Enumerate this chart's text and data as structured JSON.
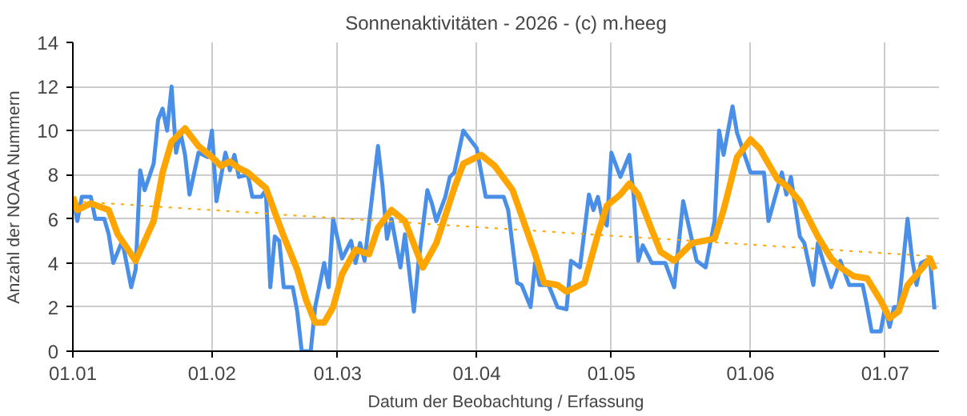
{
  "chart_data": {
    "type": "line",
    "title": "Sonnenaktivitäten - 2026 - (c) m.heeg",
    "xlabel": "Datum der Beobachtung / Erfassung",
    "ylabel": "Anzahl der NOAA Nummern",
    "xlim": [
      "2026-01-01",
      "2026-07-13"
    ],
    "xticks": [
      {
        "value": "2026-01-01",
        "label": "01.01"
      },
      {
        "value": "2026-02-01",
        "label": "01.02"
      },
      {
        "value": "2026-03-01",
        "label": "01.03"
      },
      {
        "value": "2026-04-01",
        "label": "01.04"
      },
      {
        "value": "2026-05-01",
        "label": "01.05"
      },
      {
        "value": "2026-06-01",
        "label": "01.06"
      },
      {
        "value": "2026-07-01",
        "label": "01.07"
      }
    ],
    "ylim": [
      0,
      14
    ],
    "yticks": [
      0,
      2,
      4,
      6,
      8,
      10,
      12,
      14
    ],
    "grid": true,
    "series": [
      {
        "color": "#4a8fe7",
        "line_style": "solid",
        "x": [
          "2026-01-01",
          "2026-01-02",
          "2026-01-03",
          "2026-01-05",
          "2026-01-06",
          "2026-01-08",
          "2026-01-09",
          "2026-01-10",
          "2026-01-12",
          "2026-01-14",
          "2026-01-15",
          "2026-01-16",
          "2026-01-17",
          "2026-01-19",
          "2026-01-20",
          "2026-01-21",
          "2026-01-22",
          "2026-01-23",
          "2026-01-24",
          "2026-01-25",
          "2026-01-26",
          "2026-01-27",
          "2026-01-29",
          "2026-01-31",
          "2026-02-01",
          "2026-02-02",
          "2026-02-04",
          "2026-02-05",
          "2026-02-06",
          "2026-02-07",
          "2026-02-09",
          "2026-02-10",
          "2026-02-12",
          "2026-02-13",
          "2026-02-14",
          "2026-02-15",
          "2026-02-16",
          "2026-02-17",
          "2026-02-19",
          "2026-02-20",
          "2026-02-21",
          "2026-02-23",
          "2026-02-24",
          "2026-02-26",
          "2026-02-27",
          "2026-02-28",
          "2026-03-02",
          "2026-03-04",
          "2026-03-05",
          "2026-03-06",
          "2026-03-07",
          "2026-03-10",
          "2026-03-11",
          "2026-03-12",
          "2026-03-13",
          "2026-03-15",
          "2026-03-16",
          "2026-03-18",
          "2026-03-19",
          "2026-03-21",
          "2026-03-22",
          "2026-03-23",
          "2026-03-25",
          "2026-03-26",
          "2026-03-27",
          "2026-03-29",
          "2026-04-01",
          "2026-04-03",
          "2026-04-07",
          "2026-04-08",
          "2026-04-10",
          "2026-04-11",
          "2026-04-13",
          "2026-04-14",
          "2026-04-15",
          "2026-04-17",
          "2026-04-19",
          "2026-04-21",
          "2026-04-22",
          "2026-04-24",
          "2026-04-26",
          "2026-04-27",
          "2026-04-28",
          "2026-04-29",
          "2026-04-30",
          "2026-05-01",
          "2026-05-03",
          "2026-05-05",
          "2026-05-06",
          "2026-05-07",
          "2026-05-08",
          "2026-05-10",
          "2026-05-13",
          "2026-05-15",
          "2026-05-17",
          "2026-05-18",
          "2026-05-20",
          "2026-05-22",
          "2026-05-24",
          "2026-05-25",
          "2026-05-26",
          "2026-05-28",
          "2026-05-29",
          "2026-06-01",
          "2026-06-04",
          "2026-06-05",
          "2026-06-08",
          "2026-06-09",
          "2026-06-10",
          "2026-06-12",
          "2026-06-13",
          "2026-06-15",
          "2026-06-16",
          "2026-06-17",
          "2026-06-19",
          "2026-06-21",
          "2026-06-23",
          "2026-06-26",
          "2026-06-27",
          "2026-06-28",
          "2026-06-30",
          "2026-07-01",
          "2026-07-02",
          "2026-07-03",
          "2026-07-04",
          "2026-07-06",
          "2026-07-07",
          "2026-07-08",
          "2026-07-09",
          "2026-07-10",
          "2026-07-11",
          "2026-07-12"
        ],
        "values": [
          7,
          5.9,
          7,
          7,
          6,
          6,
          5.3,
          4,
          5,
          2.9,
          3.7,
          8.2,
          7.3,
          8.5,
          10.5,
          11,
          10,
          12,
          9,
          9.9,
          8.9,
          7.1,
          9,
          8.8,
          10,
          6.8,
          9,
          8.2,
          8.9,
          7.9,
          8,
          7,
          7,
          7.3,
          2.9,
          5.2,
          5,
          2.9,
          2.9,
          1.8,
          0,
          0,
          2,
          4,
          2.9,
          6,
          4.2,
          5,
          4,
          4.9,
          4.1,
          9.3,
          7.5,
          5.1,
          6,
          3.8,
          5.3,
          1.8,
          4,
          7.3,
          6.7,
          5.9,
          7,
          7.9,
          8.1,
          10,
          9.2,
          7,
          7,
          6.4,
          3.1,
          3,
          2,
          4,
          3,
          3,
          2,
          1.9,
          4.1,
          3.8,
          7.1,
          6.4,
          7,
          6,
          5.7,
          9,
          7.9,
          8.9,
          7,
          4.1,
          4.8,
          4,
          4,
          2.9,
          6.8,
          5.9,
          4.1,
          3.8,
          5.9,
          10,
          8.9,
          11.1,
          9.9,
          8.1,
          8.1,
          5.9,
          8.1,
          7.1,
          7.9,
          5.2,
          4.9,
          3,
          4.9,
          4.2,
          2.9,
          4.1,
          3,
          3,
          2,
          0.9,
          0.9,
          2,
          1.1,
          2,
          2,
          6,
          4.2,
          3,
          4,
          4.1,
          4.2,
          1.9
        ]
      },
      {
        "color": "#ffa500",
        "line_style": "solid",
        "x": [
          "2026-01-01",
          "2026-01-02",
          "2026-01-05",
          "2026-01-09",
          "2026-01-11",
          "2026-01-15",
          "2026-01-19",
          "2026-01-21",
          "2026-01-23",
          "2026-01-26",
          "2026-01-29",
          "2026-02-01",
          "2026-02-03",
          "2026-02-05",
          "2026-02-07",
          "2026-02-09",
          "2026-02-13",
          "2026-02-15",
          "2026-02-17",
          "2026-02-20",
          "2026-02-22",
          "2026-02-24",
          "2026-02-26",
          "2026-02-28",
          "2026-03-02",
          "2026-03-05",
          "2026-03-08",
          "2026-03-10",
          "2026-03-13",
          "2026-03-16",
          "2026-03-20",
          "2026-03-23",
          "2026-03-27",
          "2026-03-29",
          "2026-04-02",
          "2026-04-05",
          "2026-04-09",
          "2026-04-14",
          "2026-04-16",
          "2026-04-19",
          "2026-04-21",
          "2026-04-25",
          "2026-04-28",
          "2026-04-30",
          "2026-05-03",
          "2026-05-05",
          "2026-05-07",
          "2026-05-10",
          "2026-05-12",
          "2026-05-15",
          "2026-05-19",
          "2026-05-24",
          "2026-05-26",
          "2026-05-29",
          "2026-06-01",
          "2026-06-03",
          "2026-06-07",
          "2026-06-09",
          "2026-06-12",
          "2026-06-16",
          "2026-06-19",
          "2026-06-21",
          "2026-06-24",
          "2026-06-27",
          "2026-06-30",
          "2026-07-02",
          "2026-07-04",
          "2026-07-06",
          "2026-07-09",
          "2026-07-11",
          "2026-07-12"
        ],
        "values": [
          7,
          6.4,
          6.7,
          6.4,
          5.3,
          4.1,
          5.9,
          8.1,
          9.5,
          10.1,
          9.3,
          8.8,
          8.4,
          8.6,
          8.3,
          8.1,
          7.4,
          6.3,
          5.2,
          3.7,
          2.3,
          1.3,
          1.3,
          2,
          3.5,
          4.6,
          4.4,
          5.6,
          6.4,
          5.9,
          3.8,
          4.9,
          7.4,
          8.5,
          8.9,
          8.4,
          7.3,
          4.4,
          3.1,
          3,
          2.7,
          3.1,
          5.3,
          6.6,
          7.1,
          7.6,
          7.1,
          5.5,
          4.5,
          4.1,
          4.9,
          5.1,
          6.4,
          8.8,
          9.6,
          9.2,
          7.8,
          7.5,
          6.8,
          5.2,
          4.2,
          3.8,
          3.4,
          3.3,
          2.3,
          1.5,
          1.8,
          3,
          3.7,
          4.2,
          3.7
        ]
      },
      {
        "color": "#ffa500",
        "line_style": "dotted",
        "x": [
          "2026-01-01",
          "2026-07-12"
        ],
        "values": [
          6.8,
          4.3
        ]
      }
    ]
  }
}
